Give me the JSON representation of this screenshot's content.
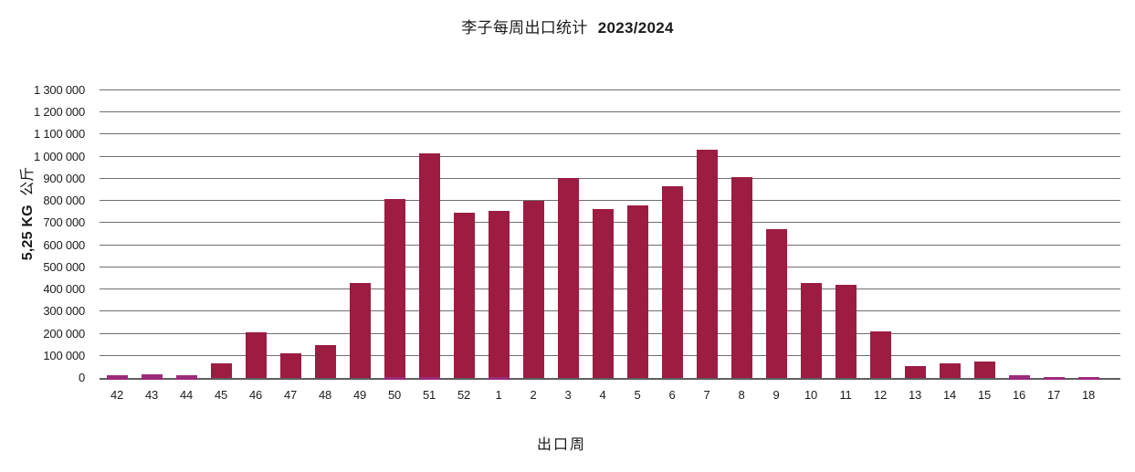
{
  "chart": {
    "title": {
      "cjk": "李子每周出口统计",
      "year": "2023/2024"
    },
    "y_axis": {
      "bold": "5,25 KG",
      "cjk": "公斤"
    },
    "x_axis": {
      "label": "出口周"
    }
  },
  "colors": {
    "crimson": "#9C1C42",
    "magenta": "#9D2B7C",
    "gridline": "#6F6F6F",
    "axis": "#5E5E5E"
  },
  "chart_data": {
    "type": "bar",
    "stacked": true,
    "title": "李子每周出口统计 2023/2024",
    "xlabel": "出口周",
    "ylabel": "5,25 KG 公斤",
    "categories": [
      "42",
      "43",
      "44",
      "45",
      "46",
      "47",
      "48",
      "49",
      "50",
      "51",
      "52",
      "1",
      "2",
      "3",
      "4",
      "5",
      "6",
      "7",
      "8",
      "9",
      "10",
      "11",
      "12",
      "13",
      "14",
      "15",
      "16",
      "17",
      "18"
    ],
    "series": [
      {
        "name": "crimson",
        "color": "#9C1C42",
        "values": [
          0,
          0,
          0,
          68000,
          207000,
          111000,
          150000,
          428000,
          804000,
          1008000,
          748000,
          748000,
          800000,
          905000,
          764000,
          780000,
          868000,
          1030000,
          910000,
          672000,
          430000,
          421000,
          212000,
          53000,
          68000,
          76000,
          0,
          0,
          0
        ]
      },
      {
        "name": "magenta",
        "color": "#9D2B7C",
        "values": [
          12000,
          15000,
          13000,
          0,
          0,
          0,
          0,
          0,
          6000,
          6000,
          0,
          6000,
          0,
          0,
          0,
          0,
          0,
          0,
          0,
          0,
          0,
          0,
          0,
          0,
          0,
          0,
          12000,
          3000,
          3000
        ]
      }
    ],
    "ylim": [
      0,
      1300000
    ],
    "ytick_step": 100000,
    "ytick_labels": [
      "0",
      "100 000",
      "200 000",
      "300 000",
      "400 000",
      "500 000",
      "600 000",
      "700 000",
      "800 000",
      "900 000",
      "1 000 000",
      "1 100 000",
      "1 200 000",
      "1 300 000"
    ],
    "grid": true,
    "legend": "none"
  }
}
